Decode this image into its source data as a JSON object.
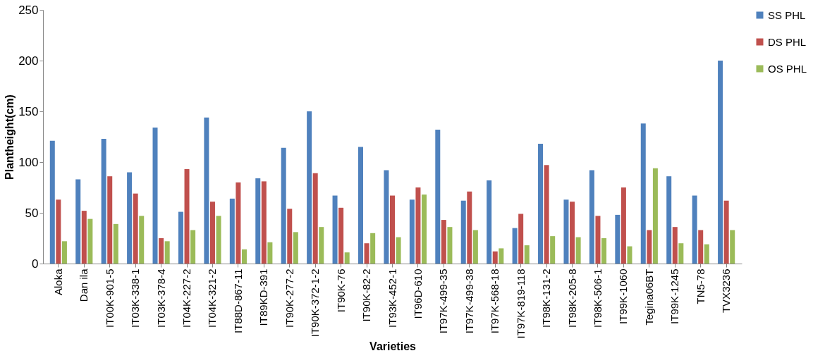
{
  "chart_data": {
    "type": "bar",
    "xlabel": "Varieties",
    "ylabel": "Plantheight(cm)",
    "categories": [
      "Aloka",
      "Dan ila",
      "IT00K-901-5",
      "IT03K-338-1",
      "IT03K-378-4",
      "IT04K-227-2",
      "IT04K-321-2",
      "IT88D-867-11",
      "IT89KD-391",
      "IT90K-277-2",
      "IT90K-372-1-2",
      "IT90K-76",
      "IT90K-82-2",
      "IT93K-452-1",
      "IT96D-610",
      "IT97K-499-35",
      "IT97K-499-38",
      "IT97K-568-18",
      "IT97K-819-118",
      "IT98K-131-2",
      "IT98K-205-8",
      "IT98K-506-1",
      "IT99K-1060",
      "Tegina06BT",
      "IT99K-1245",
      "TN5-78",
      "TVX3236"
    ],
    "series": [
      {
        "name": "SS PHL",
        "color": "#4f81bd",
        "values": [
          121,
          83,
          123,
          90,
          134,
          51,
          144,
          64,
          84,
          114,
          150,
          67,
          115,
          92,
          63,
          132,
          62,
          82,
          35,
          118,
          63,
          92,
          48,
          138,
          86,
          67,
          200
        ]
      },
      {
        "name": "DS PHL",
        "color": "#c0504d",
        "values": [
          63,
          52,
          86,
          69,
          25,
          93,
          61,
          80,
          81,
          54,
          89,
          55,
          20,
          67,
          75,
          43,
          71,
          12,
          49,
          97,
          61,
          47,
          75,
          33,
          36,
          33,
          62
        ]
      },
      {
        "name": "OS PHL",
        "color": "#9bbb59",
        "values": [
          22,
          44,
          39,
          47,
          22,
          33,
          47,
          14,
          21,
          31,
          36,
          11,
          30,
          26,
          68,
          36,
          33,
          15,
          18,
          27,
          26,
          25,
          17,
          94,
          20,
          19,
          33
        ]
      }
    ],
    "ylim": [
      0,
      250
    ],
    "yticks": [
      0,
      50,
      100,
      150,
      200,
      250
    ],
    "grid": false,
    "legend": "right"
  }
}
